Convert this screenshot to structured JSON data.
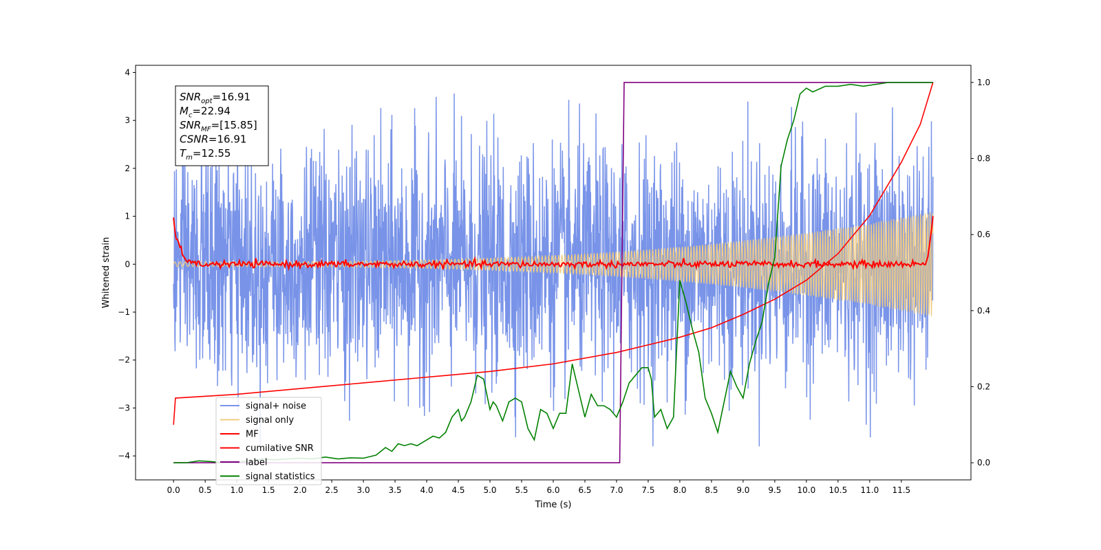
{
  "chart_data": {
    "type": "line",
    "xlabel": "Time (s)",
    "ylabel": "Whitened strain",
    "xlim": [
      -0.6,
      12.6
    ],
    "ylim": [
      -4.5,
      4.15
    ],
    "y2lim": [
      -0.045,
      1.045
    ],
    "x_ticks": [
      "0.0",
      "0.5",
      "1.0",
      "1.5",
      "2.0",
      "2.5",
      "3.0",
      "3.5",
      "4.0",
      "4.5",
      "5.0",
      "5.5",
      "6.0",
      "6.5",
      "7.0",
      "7.5",
      "8.0",
      "8.5",
      "9.0",
      "9.5",
      "10.0",
      "10.5",
      "11.0",
      "11.5"
    ],
    "y_ticks": [
      "4",
      "3",
      "2",
      "1",
      "0",
      "−1",
      "−2",
      "−3",
      "−4"
    ],
    "y_tick_values": [
      4,
      3,
      2,
      1,
      0,
      -1,
      -2,
      -3,
      -4
    ],
    "y2_ticks": [
      "1.0",
      "0.8",
      "0.6",
      "0.4",
      "0.2",
      "0.0"
    ],
    "y2_tick_values": [
      1.0,
      0.8,
      0.6,
      0.4,
      0.2,
      0.0
    ],
    "annotation": {
      "lines": [
        {
          "sym": "SNR",
          "sub": "opt",
          "val": "=16.91"
        },
        {
          "sym": "M",
          "sub": "c",
          "val": "=22.94"
        },
        {
          "sym": "SNR",
          "sub": "MF",
          "val": "=[15.85]"
        },
        {
          "sym": "CSNR",
          "sub": "",
          "val": "=16.91"
        },
        {
          "sym": "T",
          "sub": "m",
          "val": "=12.55"
        }
      ]
    },
    "legend_position": "lower-left",
    "series": [
      {
        "name": "signal+ noise",
        "color": "#7893e8",
        "axis": "left",
        "x_range": [
          0,
          12.0
        ],
        "noise_std": 1.2
      },
      {
        "name": "signal only",
        "color": "#f2cc80",
        "axis": "left",
        "x_range": [
          0,
          12.0
        ],
        "amplitude_start": 0.05,
        "amplitude_end": 1.1
      },
      {
        "name": "MF",
        "color": "#ff0000",
        "axis": "left",
        "x_range": [
          0,
          12.0
        ],
        "start": 0.95,
        "baseline": 0.0,
        "end": 1.0
      },
      {
        "name": "cumilative SNR",
        "color": "#ff0000",
        "axis": "right",
        "x": [
          0.0,
          0.03,
          1.0,
          2.0,
          3.0,
          4.0,
          5.0,
          6.0,
          7.0,
          7.5,
          8.0,
          8.5,
          9.0,
          9.5,
          10.0,
          10.5,
          11.0,
          11.5,
          11.8,
          12.0
        ],
        "y": [
          0.1,
          0.17,
          0.18,
          0.195,
          0.21,
          0.225,
          0.24,
          0.26,
          0.29,
          0.31,
          0.33,
          0.355,
          0.39,
          0.43,
          0.48,
          0.55,
          0.65,
          0.79,
          0.89,
          1.0
        ]
      },
      {
        "name": "label",
        "color": "#800080",
        "axis": "right",
        "x": [
          0.0,
          7.05,
          7.12,
          12.0
        ],
        "y": [
          0.0,
          0.0,
          1.0,
          1.0
        ]
      },
      {
        "name": "signal statistics",
        "color": "#008000",
        "axis": "right",
        "x": [
          0.0,
          0.2,
          0.4,
          0.6,
          0.8,
          1.0,
          1.2,
          1.4,
          1.6,
          1.8,
          2.0,
          2.2,
          2.4,
          2.6,
          2.8,
          3.0,
          3.2,
          3.35,
          3.45,
          3.55,
          3.65,
          3.75,
          3.85,
          4.0,
          4.1,
          4.2,
          4.3,
          4.4,
          4.5,
          4.55,
          4.6,
          4.7,
          4.8,
          4.9,
          5.0,
          5.05,
          5.1,
          5.2,
          5.3,
          5.4,
          5.5,
          5.6,
          5.7,
          5.8,
          5.9,
          6.0,
          6.1,
          6.2,
          6.3,
          6.4,
          6.5,
          6.6,
          6.7,
          6.8,
          6.9,
          7.0,
          7.1,
          7.2,
          7.3,
          7.4,
          7.5,
          7.55,
          7.6,
          7.7,
          7.8,
          7.9,
          8.0,
          8.1,
          8.2,
          8.3,
          8.4,
          8.5,
          8.6,
          8.7,
          8.8,
          8.9,
          9.0,
          9.1,
          9.2,
          9.3,
          9.4,
          9.5,
          9.6,
          9.7,
          9.8,
          9.9,
          10.0,
          10.1,
          10.3,
          10.5,
          10.7,
          10.9,
          11.1,
          11.3,
          11.6,
          12.0
        ],
        "y": [
          0.0,
          0.0,
          0.005,
          0.003,
          0.0,
          0.002,
          0.005,
          0.01,
          0.008,
          0.01,
          0.012,
          0.01,
          0.015,
          0.01,
          0.013,
          0.012,
          0.02,
          0.04,
          0.03,
          0.05,
          0.045,
          0.05,
          0.045,
          0.06,
          0.07,
          0.065,
          0.08,
          0.12,
          0.14,
          0.11,
          0.12,
          0.16,
          0.23,
          0.22,
          0.14,
          0.16,
          0.15,
          0.11,
          0.16,
          0.17,
          0.16,
          0.09,
          0.06,
          0.14,
          0.13,
          0.09,
          0.13,
          0.13,
          0.26,
          0.19,
          0.12,
          0.18,
          0.15,
          0.15,
          0.14,
          0.12,
          0.16,
          0.21,
          0.23,
          0.25,
          0.25,
          0.22,
          0.12,
          0.14,
          0.09,
          0.12,
          0.48,
          0.42,
          0.35,
          0.29,
          0.17,
          0.13,
          0.08,
          0.16,
          0.24,
          0.2,
          0.17,
          0.26,
          0.32,
          0.37,
          0.47,
          0.54,
          0.78,
          0.85,
          0.9,
          0.97,
          0.985,
          0.975,
          0.99,
          0.99,
          0.995,
          0.99,
          0.995,
          1.0,
          1.0,
          1.0
        ]
      }
    ]
  }
}
